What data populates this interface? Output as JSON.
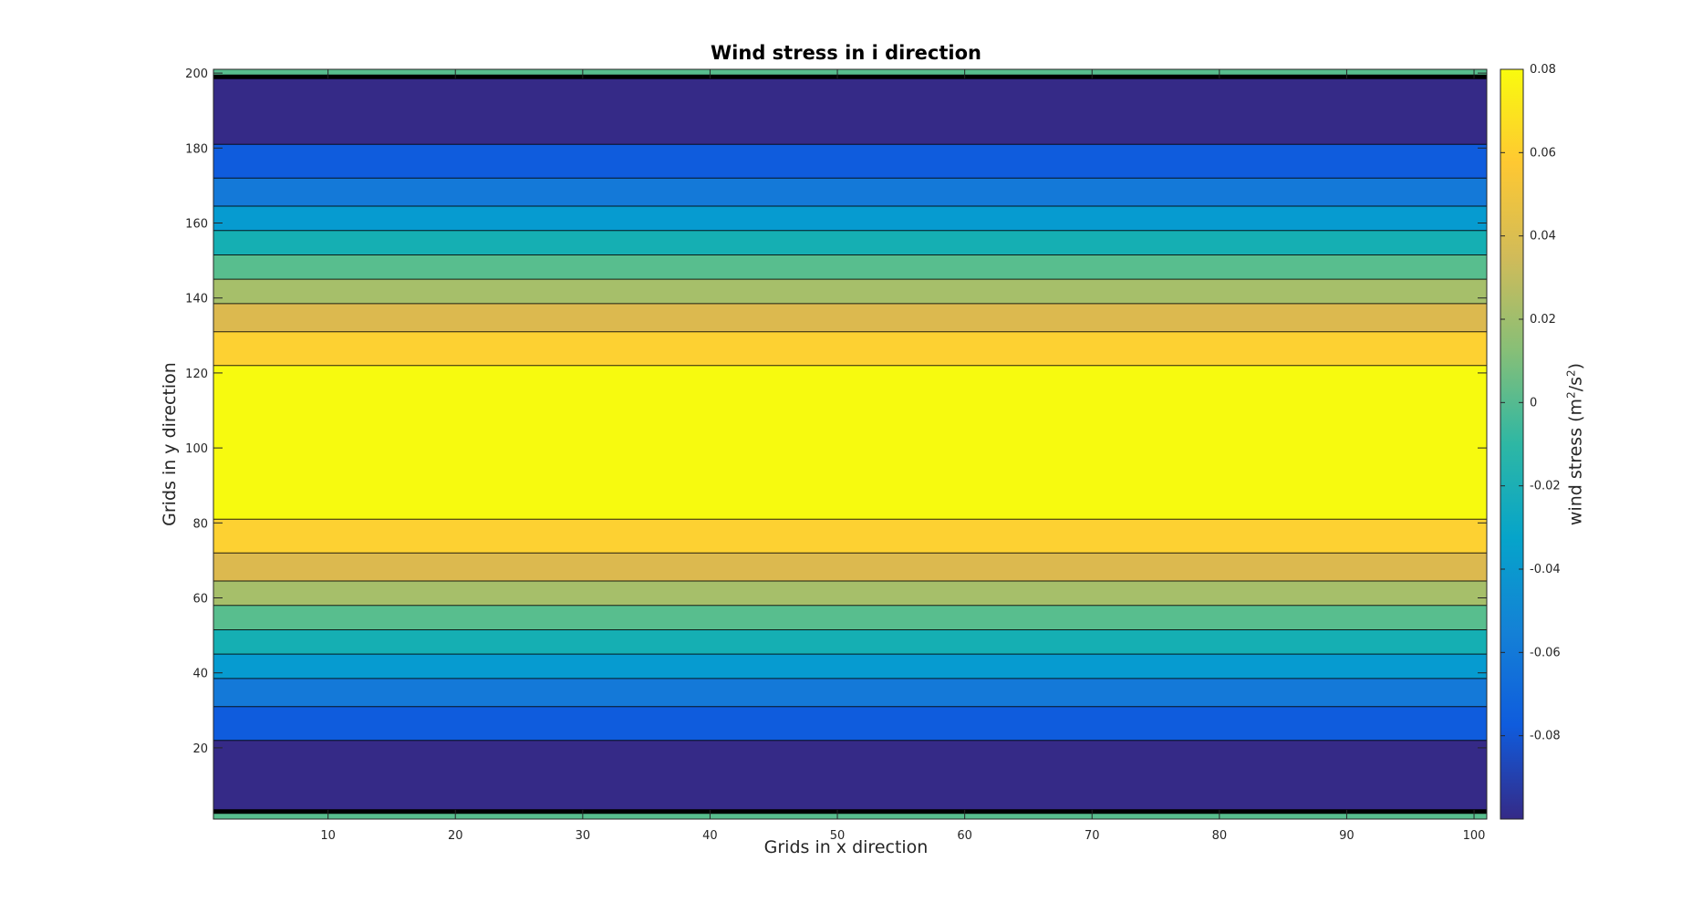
{
  "chart_data": {
    "type": "heatmap",
    "title": "Wind stress in i direction",
    "xlabel": "Grids in x direction",
    "ylabel": "Grids in y direction",
    "colorbar_label": {
      "prefix": "wind stress (m",
      "sup1": "2",
      "mid": "/s",
      "sup2": "2",
      "suffix": ")"
    },
    "xlim": [
      1,
      101
    ],
    "ylim": [
      1,
      201
    ],
    "xticks": [
      "10",
      "20",
      "30",
      "40",
      "50",
      "60",
      "70",
      "80",
      "90",
      "100"
    ],
    "yticks": [
      "20",
      "40",
      "60",
      "80",
      "100",
      "120",
      "140",
      "160",
      "180",
      "200"
    ],
    "colorbar_range": [
      -0.1,
      0.08
    ],
    "colorbar_ticks": [
      "-0.08",
      "-0.06",
      "-0.04",
      "-0.02",
      "0",
      "0.02",
      "0.04",
      "0.06",
      "0.08"
    ],
    "colorbar_tick_values": [
      -0.08,
      -0.06,
      -0.04,
      -0.02,
      0,
      0.02,
      0.04,
      0.06,
      0.08
    ],
    "colormap": [
      "#352a87",
      "#0f5cdd",
      "#1481d6",
      "#06a4ca",
      "#2eb7a4",
      "#87bf77",
      "#d1bb59",
      "#fec832",
      "#f9fb0e"
    ],
    "bands": [
      {
        "y0": 1,
        "y1": 3,
        "color": "#58be8e"
      },
      {
        "y0": 3,
        "y1": 22,
        "color": "#352a87"
      },
      {
        "y0": 22,
        "y1": 31,
        "color": "#0f5cdd"
      },
      {
        "y0": 31,
        "y1": 38.5,
        "color": "#1479d8"
      },
      {
        "y0": 38.5,
        "y1": 45,
        "color": "#069bd0"
      },
      {
        "y0": 45,
        "y1": 51.5,
        "color": "#15afb3"
      },
      {
        "y0": 51.5,
        "y1": 58,
        "color": "#58be8e"
      },
      {
        "y0": 58,
        "y1": 64.5,
        "color": "#a6bf6a"
      },
      {
        "y0": 64.5,
        "y1": 72,
        "color": "#dcb94f"
      },
      {
        "y0": 72,
        "y1": 81,
        "color": "#fdd132"
      },
      {
        "y0": 81,
        "y1": 122,
        "color": "#f7fa0f"
      },
      {
        "y0": 122,
        "y1": 131,
        "color": "#fdd132"
      },
      {
        "y0": 131,
        "y1": 138.5,
        "color": "#dcb94f"
      },
      {
        "y0": 138.5,
        "y1": 145,
        "color": "#a6bf6a"
      },
      {
        "y0": 145,
        "y1": 151.5,
        "color": "#58be8e"
      },
      {
        "y0": 151.5,
        "y1": 158,
        "color": "#15afb3"
      },
      {
        "y0": 158,
        "y1": 164.5,
        "color": "#069bd0"
      },
      {
        "y0": 164.5,
        "y1": 172,
        "color": "#1479d8"
      },
      {
        "y0": 172,
        "y1": 181,
        "color": "#0f5cdd"
      },
      {
        "y0": 181,
        "y1": 199,
        "color": "#352a87"
      },
      {
        "y0": 199,
        "y1": 201,
        "color": "#58be8e"
      }
    ]
  }
}
